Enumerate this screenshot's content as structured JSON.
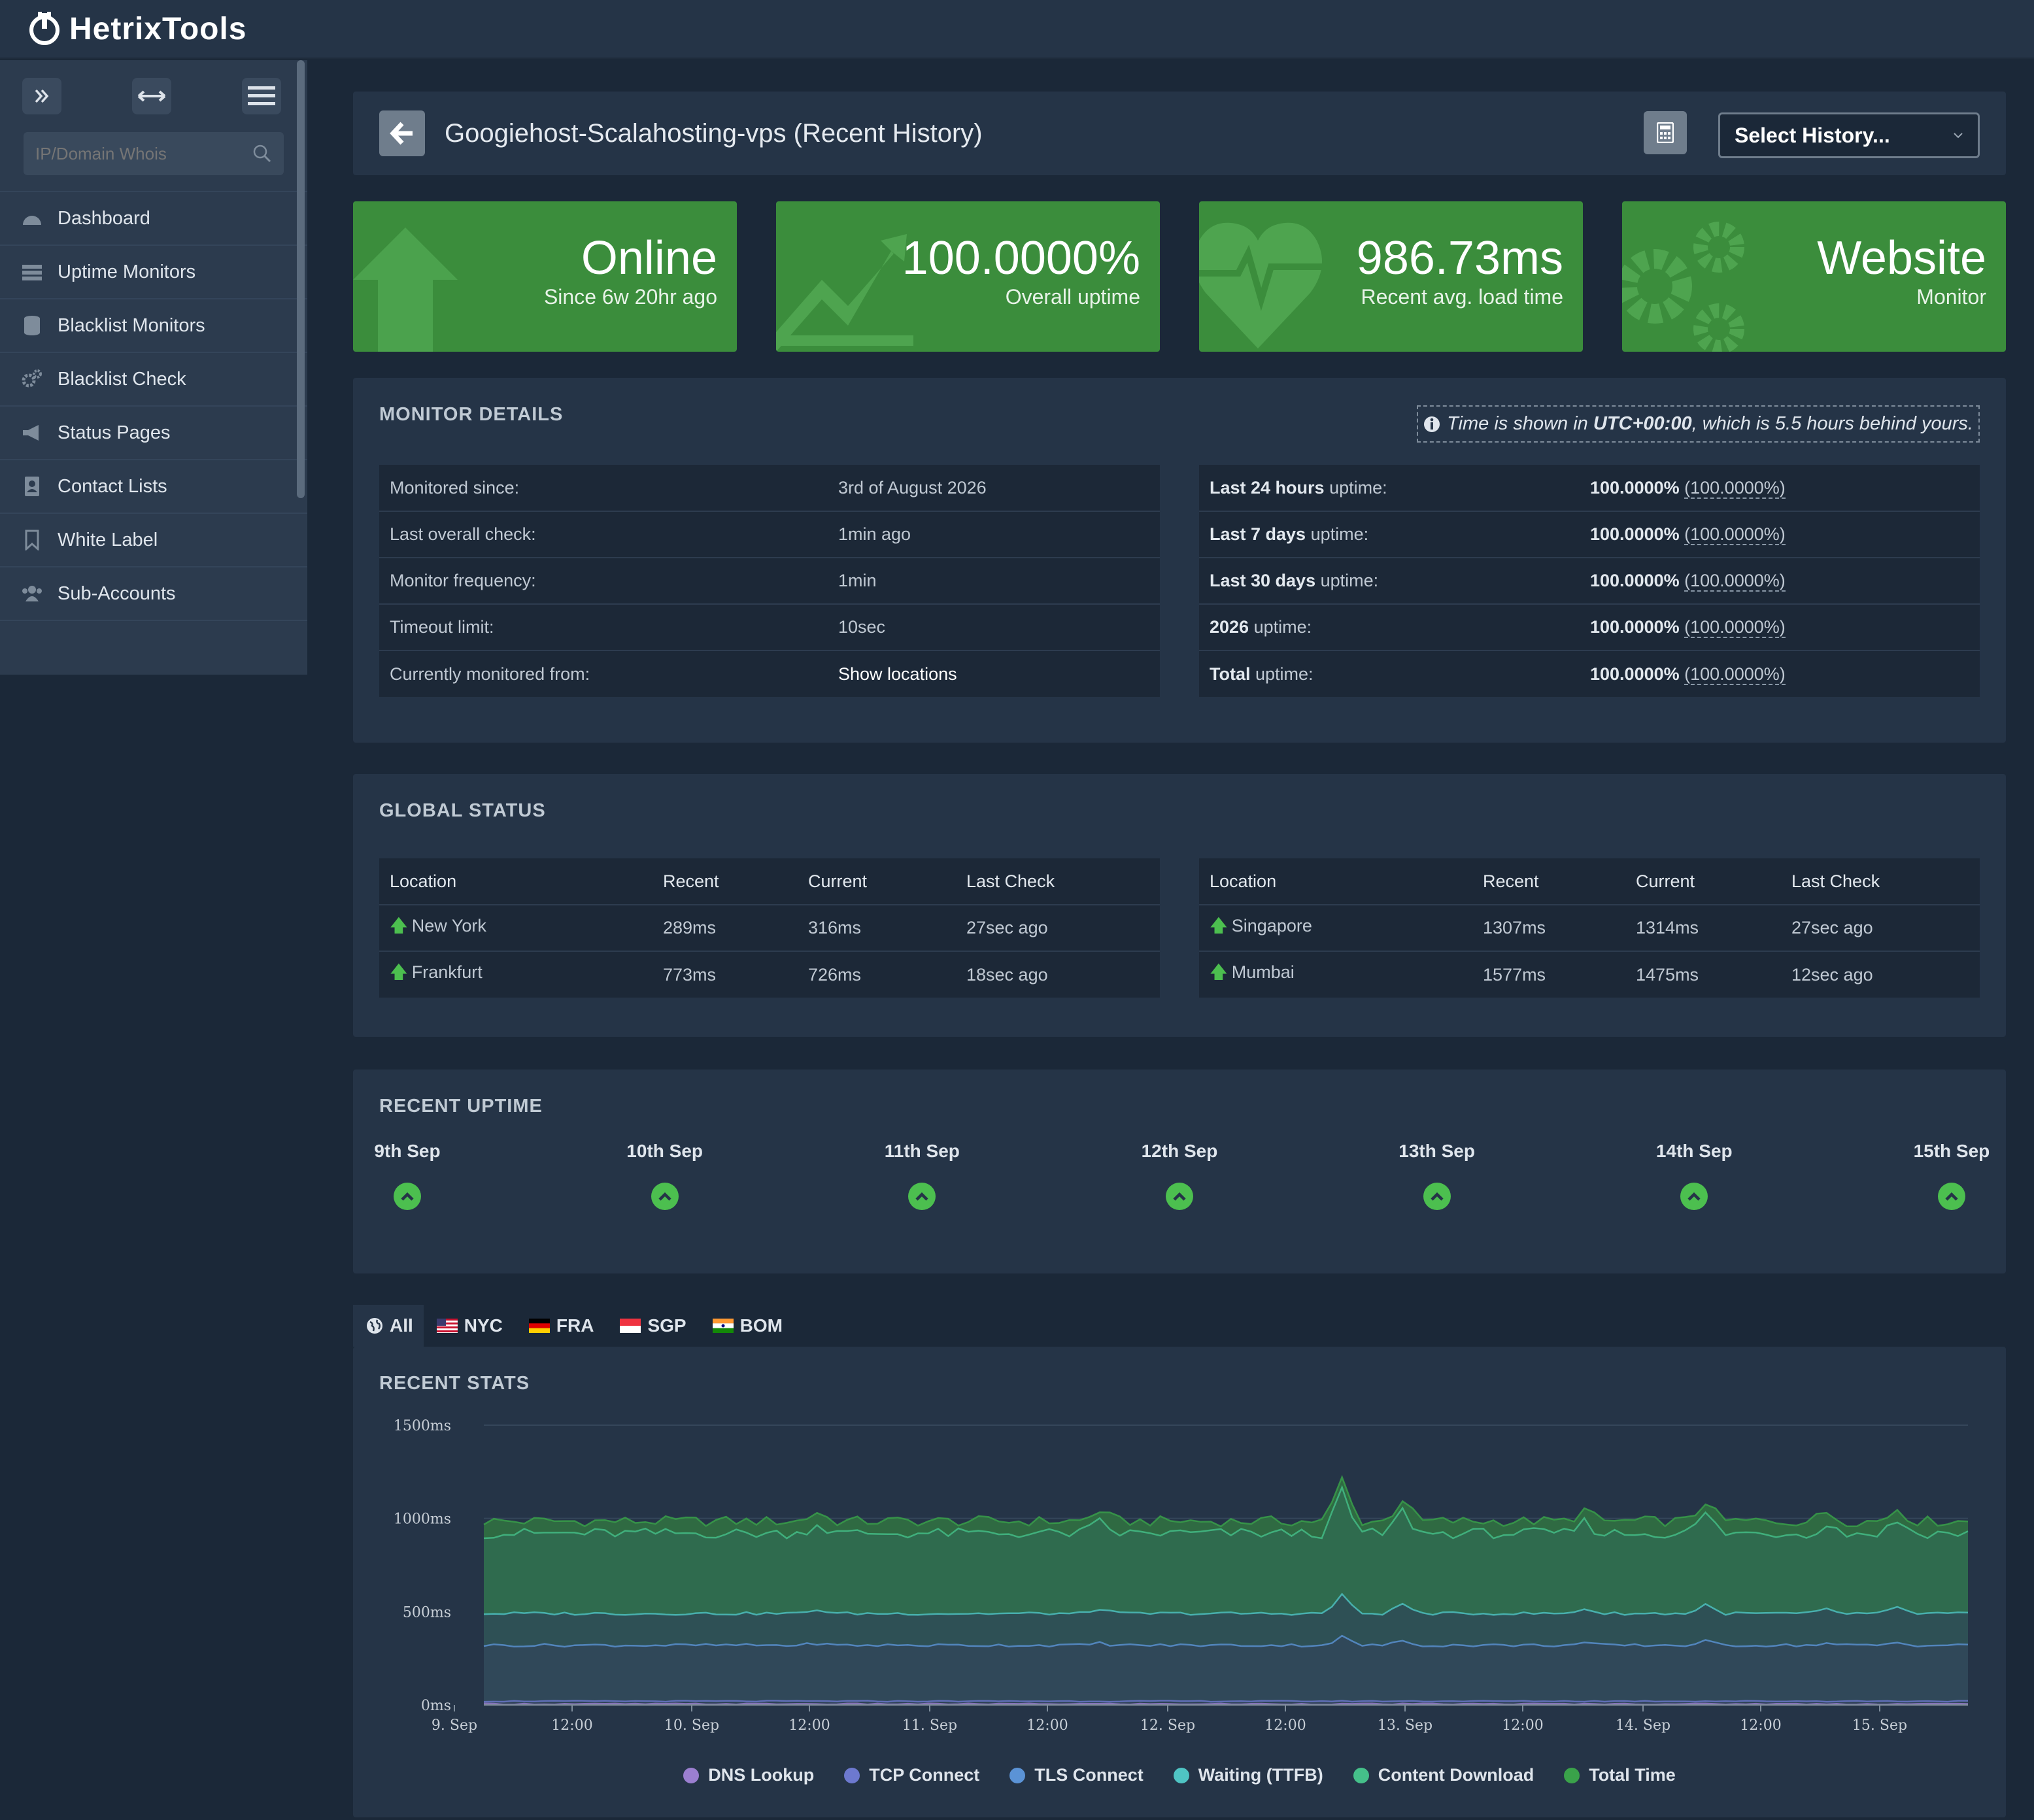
{
  "app": {
    "name": "HetrixTools"
  },
  "sidebar": {
    "search_placeholder": "IP/Domain Whois",
    "items": [
      {
        "label": "Dashboard"
      },
      {
        "label": "Uptime Monitors"
      },
      {
        "label": "Blacklist Monitors"
      },
      {
        "label": "Blacklist Check"
      },
      {
        "label": "Status Pages"
      },
      {
        "label": "Contact Lists"
      },
      {
        "label": "White Label"
      },
      {
        "label": "Sub-Accounts"
      }
    ]
  },
  "header": {
    "title": "Googiehost-Scalahosting-vps (Recent History)",
    "select_label": "Select History..."
  },
  "cards": [
    {
      "big": "Online",
      "small": "Since 6w 20hr ago"
    },
    {
      "big": "100.0000%",
      "small": "Overall uptime"
    },
    {
      "big": "986.73ms",
      "small": "Recent avg. load time"
    },
    {
      "big": "Website",
      "small": "Monitor"
    }
  ],
  "details": {
    "title": "MONITOR DETAILS",
    "tz_prefix": "Time is shown in",
    "tz_zone": "UTC+00:00",
    "tz_suffix": ", which is 5.5 hours behind yours.",
    "left": [
      {
        "label": "Monitored since:",
        "value": "3rd of August 2026"
      },
      {
        "label": "Last overall check:",
        "value": "1min ago"
      },
      {
        "label": "Monitor frequency:",
        "value": "1min"
      },
      {
        "label": "Timeout limit:",
        "value": "10sec"
      },
      {
        "label": "Currently monitored from:",
        "value": "Show locations"
      }
    ],
    "right": [
      {
        "bold": "Last 24 hours",
        "rest": " uptime:",
        "value": "100.0000%",
        "paren": "(100.0000%)"
      },
      {
        "bold": "Last 7 days",
        "rest": " uptime:",
        "value": "100.0000%",
        "paren": "(100.0000%)"
      },
      {
        "bold": "Last 30 days",
        "rest": " uptime:",
        "value": "100.0000%",
        "paren": "(100.0000%)"
      },
      {
        "bold": "2026",
        "rest": " uptime:",
        "value": "100.0000%",
        "paren": "(100.0000%)"
      },
      {
        "bold": "Total",
        "rest": " uptime:",
        "value": "100.0000%",
        "paren": "(100.0000%)"
      }
    ]
  },
  "global": {
    "title": "GLOBAL STATUS",
    "headers": [
      "Location",
      "Recent",
      "Current",
      "Last Check"
    ],
    "left": [
      {
        "loc": "New York",
        "recent": "289ms",
        "current": "316ms",
        "last": "27sec ago"
      },
      {
        "loc": "Frankfurt",
        "recent": "773ms",
        "current": "726ms",
        "last": "18sec ago"
      }
    ],
    "right": [
      {
        "loc": "Singapore",
        "recent": "1307ms",
        "current": "1314ms",
        "last": "27sec ago"
      },
      {
        "loc": "Mumbai",
        "recent": "1577ms",
        "current": "1475ms",
        "last": "12sec ago"
      }
    ]
  },
  "uptime": {
    "title": "RECENT UPTIME",
    "days": [
      "9th Sep",
      "10th Sep",
      "11th Sep",
      "12th Sep",
      "13th Sep",
      "14th Sep",
      "15th Sep"
    ]
  },
  "tabs": [
    {
      "label": "All",
      "icon": "globe-icon"
    },
    {
      "label": "NYC",
      "icon": "us-flag-icon"
    },
    {
      "label": "FRA",
      "icon": "de-flag-icon"
    },
    {
      "label": "SGP",
      "icon": "sg-flag-icon"
    },
    {
      "label": "BOM",
      "icon": "in-flag-icon"
    }
  ],
  "stats": {
    "title": "RECENT STATS"
  },
  "chart_data": {
    "type": "area",
    "ylim": [
      0,
      1500
    ],
    "y_ticks": [
      "0ms",
      "500ms",
      "1000ms",
      "1500ms"
    ],
    "y_tick_values": [
      0,
      500,
      1000,
      1500
    ],
    "x_ticks": [
      "9. Sep",
      "12:00",
      "10. Sep",
      "12:00",
      "11. Sep",
      "12:00",
      "12. Sep",
      "12:00",
      "13. Sep",
      "12:00",
      "14. Sep",
      "12:00",
      "15. Sep"
    ],
    "x_tick_values": [
      0,
      12,
      24,
      36,
      48,
      60,
      72,
      84,
      96,
      108,
      120,
      132,
      144
    ],
    "x_range": [
      0,
      147
    ],
    "legend": "bottom",
    "series": [
      {
        "name": "DNS Lookup",
        "color": "#9b7fd0",
        "base": 5
      },
      {
        "name": "TCP Connect",
        "color": "#6d79cf",
        "base": 20
      },
      {
        "name": "TLS Connect",
        "color": "#5b93d6",
        "base": 320
      },
      {
        "name": "Waiting (TTFB)",
        "color": "#4fc4c4",
        "base": 490
      },
      {
        "name": "Content Download",
        "color": "#45c08a",
        "base": 920
      },
      {
        "name": "Total Time",
        "color": "#3aa24a",
        "base": 985
      }
    ],
    "spikes": [
      {
        "x": 33,
        "dy": 50
      },
      {
        "x": 61,
        "dy": 60
      },
      {
        "x": 85,
        "dy": 230
      },
      {
        "x": 91,
        "dy": 120
      },
      {
        "x": 109,
        "dy": 60
      },
      {
        "x": 121,
        "dy": 110
      },
      {
        "x": 133,
        "dy": 50
      },
      {
        "x": 140,
        "dy": 70
      }
    ]
  }
}
